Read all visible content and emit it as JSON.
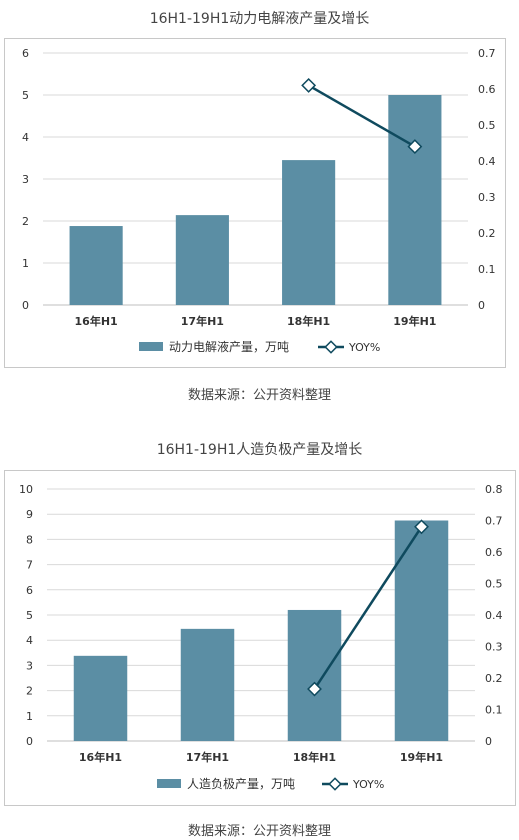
{
  "chart_data": [
    {
      "type": "bar",
      "title": "16H1-19H1动力电解液产量及增长",
      "categories": [
        "16年H1",
        "17年H1",
        "18年H1",
        "19年H1"
      ],
      "series": [
        {
          "name": "动力电解液产量，万吨",
          "type": "bar",
          "axis": "left",
          "values": [
            1.88,
            2.14,
            3.45,
            5.0
          ]
        },
        {
          "name": "YOY%",
          "type": "line",
          "axis": "right",
          "values": [
            null,
            null,
            0.61,
            0.44
          ]
        }
      ],
      "ylim": [
        0,
        6
      ],
      "y_ticks": [
        0,
        1,
        2,
        3,
        4,
        5,
        6
      ],
      "y2lim": [
        0,
        0.7
      ],
      "y2_ticks": [
        0,
        0.1,
        0.2,
        0.3,
        0.4,
        0.5,
        0.6,
        0.7
      ],
      "grid": true,
      "legend": "bottom",
      "source": "数据来源：公开资料整理"
    },
    {
      "type": "bar",
      "title": "16H1-19H1人造负极产量及增长",
      "categories": [
        "16年H1",
        "17年H1",
        "18年H1",
        "19年H1"
      ],
      "series": [
        {
          "name": "人造负极产量，万吨",
          "type": "bar",
          "axis": "left",
          "values": [
            3.38,
            4.45,
            5.2,
            8.75
          ]
        },
        {
          "name": "YOY%",
          "type": "line",
          "axis": "right",
          "values": [
            null,
            null,
            0.165,
            0.68
          ]
        }
      ],
      "ylim": [
        0,
        10
      ],
      "y_ticks": [
        0,
        1,
        2,
        3,
        4,
        5,
        6,
        7,
        8,
        9,
        10
      ],
      "y2lim": [
        0,
        0.8
      ],
      "y2_ticks": [
        0,
        0.1,
        0.2,
        0.3,
        0.4,
        0.5,
        0.6,
        0.7,
        0.8
      ],
      "grid": true,
      "legend": "bottom",
      "source": "数据来源：公开资料整理"
    }
  ],
  "colors": {
    "bar": "#5b8ea4",
    "line": "#0f4a5e",
    "grid": "#d9d9d9"
  }
}
